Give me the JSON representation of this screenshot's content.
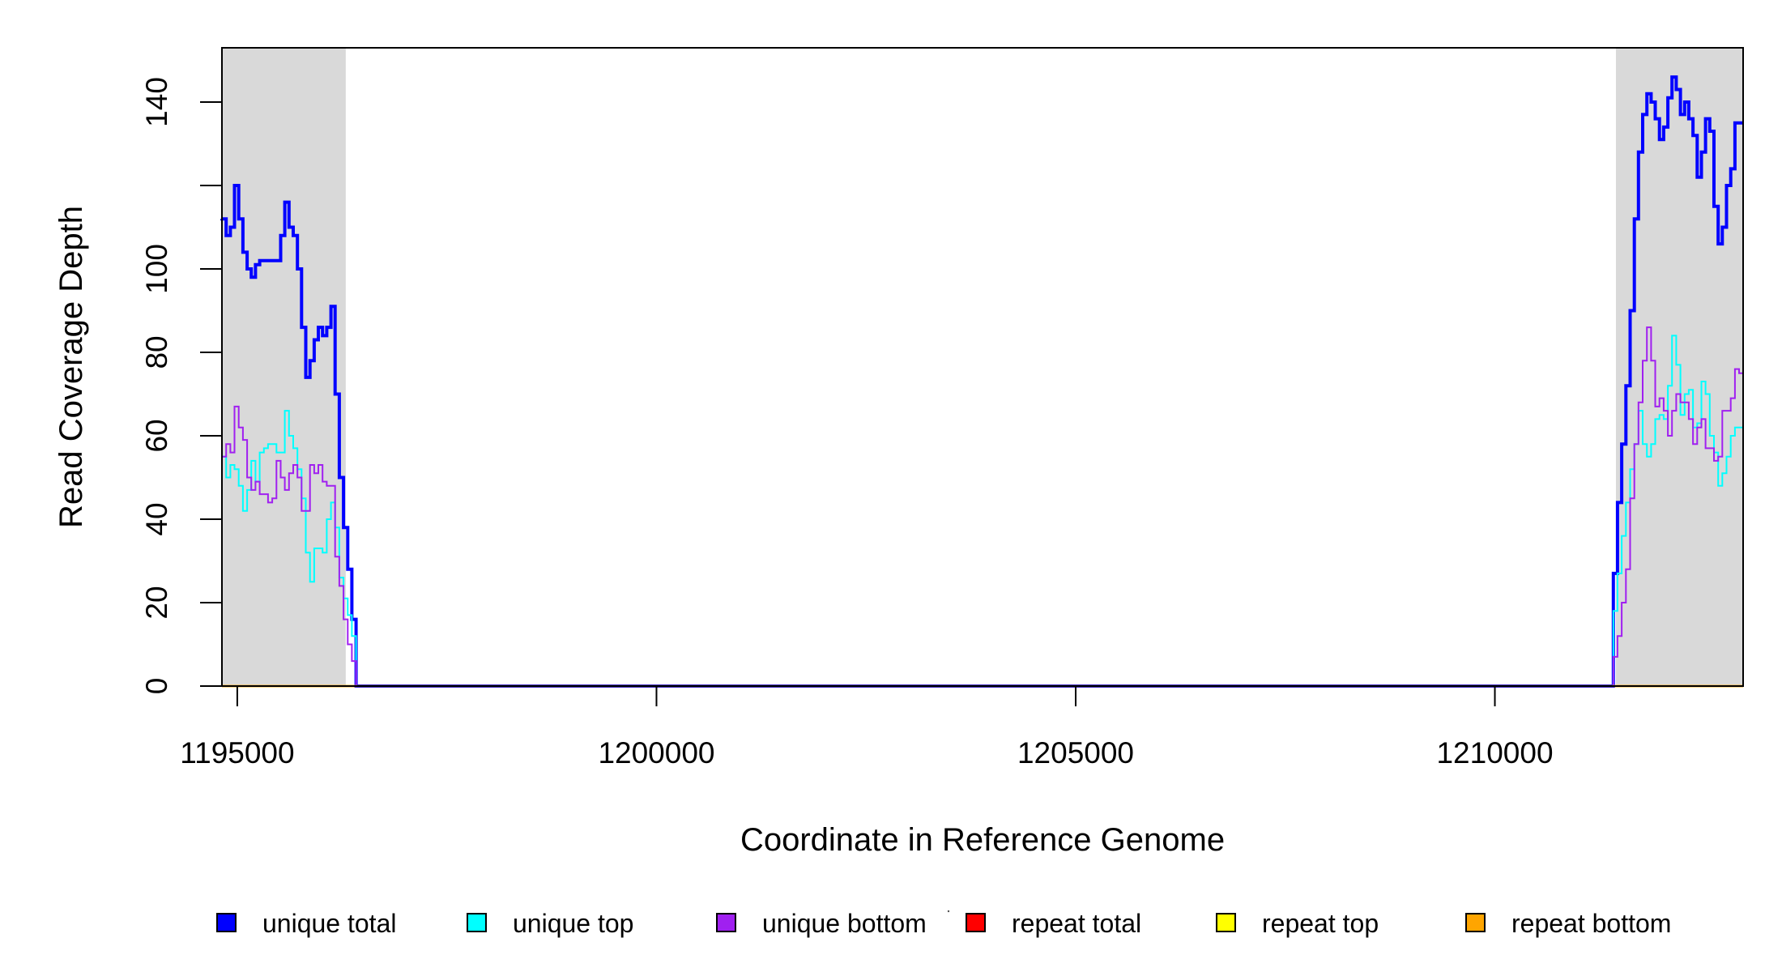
{
  "chart_data": {
    "type": "line",
    "title": "",
    "xlabel": "Coordinate in Reference Genome",
    "ylabel": "Read Coverage Depth",
    "xlim": [
      1194817,
      1212961
    ],
    "ylim": [
      0,
      153
    ],
    "x_ticks": [
      1195000,
      1200000,
      1205000,
      1210000
    ],
    "x_tick_labels": [
      "1195000",
      "1200000",
      "1205000",
      "1210000"
    ],
    "y_ticks": [
      0,
      20,
      40,
      60,
      80,
      100,
      120,
      140
    ],
    "y_tick_labels": [
      "0",
      "20",
      "40",
      "60",
      "80",
      "100",
      "",
      "140"
    ],
    "grid": false,
    "legend_placement": "bottom",
    "shaded_regions": [
      [
        1194817,
        1196294
      ],
      [
        1211444,
        1212961
      ]
    ],
    "shade_color": "#d9d9d9",
    "bin_size": 50,
    "regions": [
      {
        "start": 1194817,
        "end": 1196417
      },
      {
        "start": 1211413,
        "end": 1212961
      }
    ],
    "series": [
      {
        "name": "unique total",
        "color": "#0000ff",
        "values": [
          [
            112,
            108,
            110,
            120,
            112,
            104,
            100,
            98,
            101,
            102,
            102,
            102,
            102,
            102,
            108,
            116,
            110,
            108,
            100,
            86,
            74,
            78,
            83,
            86,
            84,
            86,
            91,
            70,
            50,
            38,
            28,
            16
          ],
          [
            27,
            44,
            58,
            72,
            90,
            112,
            128,
            137,
            142,
            140,
            136,
            131,
            134,
            141,
            146,
            143,
            137,
            140,
            136,
            132,
            122,
            128,
            136,
            133,
            115,
            106,
            110,
            120,
            124,
            135,
            135
          ]
        ]
      },
      {
        "name": "unique top",
        "color": "#00ffff",
        "values": [
          [
            55,
            50,
            53,
            52,
            48,
            42,
            47,
            54,
            49,
            56,
            57,
            58,
            58,
            56,
            56,
            66,
            60,
            57,
            52,
            45,
            32,
            25,
            33,
            33,
            32,
            40,
            44,
            38,
            26,
            21,
            17,
            12
          ],
          [
            18,
            27,
            36,
            44,
            52,
            58,
            66,
            58,
            55,
            58,
            64,
            65,
            64,
            72,
            84,
            77,
            65,
            70,
            71,
            62,
            63,
            73,
            70,
            60,
            56,
            48,
            51,
            55,
            60,
            62,
            62
          ]
        ]
      },
      {
        "name": "unique bottom",
        "color": "#a020f0",
        "values": [
          [
            55,
            58,
            56,
            67,
            62,
            59,
            50,
            47,
            49,
            46,
            46,
            44,
            45,
            54,
            50,
            47,
            51,
            53,
            50,
            42,
            42,
            53,
            51,
            53,
            49,
            48,
            48,
            31,
            24,
            16,
            10,
            6
          ],
          [
            7,
            12,
            20,
            28,
            45,
            58,
            68,
            78,
            86,
            78,
            67,
            69,
            66,
            60,
            66,
            70,
            68,
            68,
            64,
            58,
            62,
            64,
            57,
            57,
            54,
            55,
            66,
            66,
            69,
            76,
            75
          ]
        ]
      },
      {
        "name": "repeat total",
        "color": "#ff0000",
        "values": [
          [
            0
          ],
          [
            0
          ]
        ]
      },
      {
        "name": "repeat top",
        "color": "#ffff00",
        "values": [
          [
            0
          ],
          [
            0
          ]
        ]
      },
      {
        "name": "repeat bottom",
        "color": "#ffa500",
        "values": [
          [
            0
          ],
          [
            0
          ]
        ]
      }
    ]
  },
  "legend": {
    "items": [
      {
        "label": "unique total",
        "color": "#0000ff"
      },
      {
        "label": "unique top",
        "color": "#00ffff"
      },
      {
        "label": "unique bottom",
        "color": "#a020f0"
      },
      {
        "label": "repeat total",
        "color": "#ff0000"
      },
      {
        "label": "repeat top",
        "color": "#ffff00"
      },
      {
        "label": "repeat bottom",
        "color": "#ffa500"
      }
    ]
  }
}
